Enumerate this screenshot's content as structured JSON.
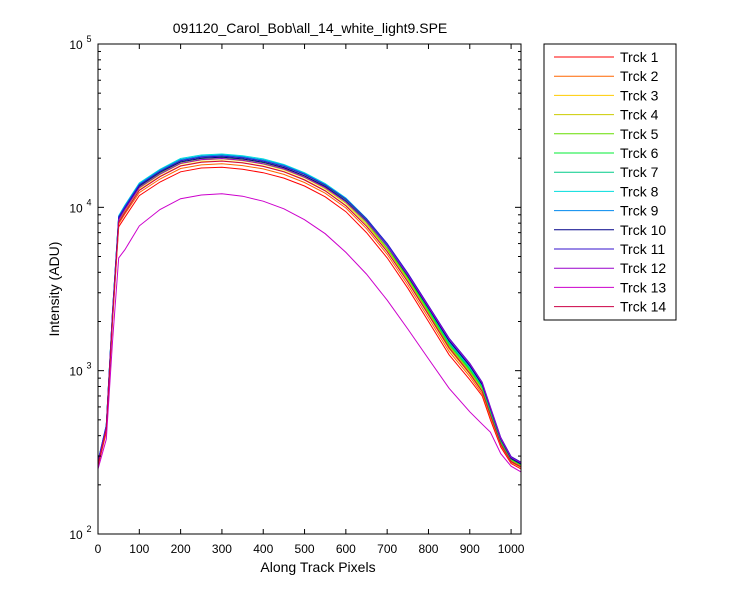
{
  "chart_data": {
    "type": "line",
    "title": "091120_Carol_Bob\\all_14_white_light9.SPE",
    "xlabel": "Along Track Pixels",
    "ylabel": "Intensity (ADU)",
    "xlim": [
      0,
      1024
    ],
    "ylim": [
      100,
      100000
    ],
    "yscale": "log",
    "grid": false,
    "legend_position": "outside-right",
    "x_ticks": [
      "0",
      "100",
      "200",
      "300",
      "400",
      "500",
      "600",
      "700",
      "800",
      "900",
      "1000"
    ],
    "y_ticks": [
      {
        "base": "10",
        "exp": "2"
      },
      {
        "base": "10",
        "exp": "3"
      },
      {
        "base": "10",
        "exp": "4"
      },
      {
        "base": "10",
        "exp": "5"
      }
    ],
    "x": [
      0,
      20,
      35,
      50,
      65,
      100,
      150,
      200,
      250,
      300,
      350,
      400,
      450,
      500,
      550,
      600,
      650,
      700,
      750,
      800,
      850,
      900,
      930,
      950,
      975,
      1000,
      1024
    ],
    "series": [
      {
        "name": "Trck 1",
        "color": "#ff0000",
        "values": [
          260,
          420,
          2000,
          7600,
          8700,
          11800,
          14300,
          16500,
          17400,
          17600,
          17100,
          16300,
          15100,
          13500,
          11600,
          9400,
          7000,
          4900,
          3200,
          2000,
          1250,
          880,
          700,
          500,
          340,
          270,
          250
        ]
      },
      {
        "name": "Trck 2",
        "color": "#ff6600",
        "values": [
          265,
          430,
          2050,
          7900,
          9100,
          12300,
          14900,
          17300,
          18200,
          18500,
          18000,
          17200,
          15900,
          14200,
          12200,
          9900,
          7400,
          5150,
          3350,
          2100,
          1310,
          920,
          720,
          520,
          350,
          275,
          255
        ]
      },
      {
        "name": "Trck 3",
        "color": "#ffcc00",
        "values": [
          270,
          440,
          2100,
          8100,
          9400,
          12800,
          15500,
          18000,
          19000,
          19300,
          18800,
          17900,
          16600,
          14800,
          12700,
          10300,
          7700,
          5350,
          3500,
          2190,
          1360,
          950,
          740,
          530,
          355,
          280,
          260
        ]
      },
      {
        "name": "Trck 4",
        "color": "#cccc00",
        "values": [
          270,
          445,
          2150,
          8300,
          9600,
          13100,
          15900,
          18500,
          19500,
          19800,
          19300,
          18400,
          17000,
          15200,
          13000,
          10600,
          7900,
          5500,
          3600,
          2250,
          1400,
          980,
          760,
          545,
          360,
          282,
          262
        ]
      },
      {
        "name": "Trck 5",
        "color": "#66dd00",
        "values": [
          275,
          450,
          2200,
          8500,
          9800,
          13400,
          16200,
          18900,
          19900,
          20200,
          19700,
          18800,
          17400,
          15500,
          13300,
          10800,
          8100,
          5600,
          3680,
          2300,
          1430,
          1000,
          780,
          555,
          365,
          285,
          264
        ]
      },
      {
        "name": "Trck 6",
        "color": "#00ee33",
        "values": [
          275,
          455,
          2250,
          8700,
          10000,
          13700,
          16600,
          19300,
          20300,
          20600,
          20100,
          19200,
          17800,
          15900,
          13600,
          11000,
          8300,
          5750,
          3750,
          2350,
          1460,
          1020,
          795,
          565,
          370,
          288,
          266
        ]
      },
      {
        "name": "Trck 7",
        "color": "#00cc88",
        "values": [
          278,
          460,
          2280,
          8800,
          10100,
          13900,
          16800,
          19600,
          20600,
          20900,
          20400,
          19500,
          18100,
          16100,
          13800,
          11200,
          8400,
          5850,
          3820,
          2390,
          1480,
          1040,
          805,
          575,
          375,
          290,
          268
        ]
      },
      {
        "name": "Trck 8",
        "color": "#00dddd",
        "values": [
          280,
          465,
          2300,
          8900,
          10300,
          14100,
          17100,
          19900,
          20900,
          21200,
          20700,
          19800,
          18300,
          16300,
          14000,
          11400,
          8550,
          5950,
          3880,
          2430,
          1510,
          1055,
          815,
          580,
          380,
          292,
          270
        ]
      },
      {
        "name": "Trck 9",
        "color": "#0088ee",
        "values": [
          280,
          462,
          2280,
          8800,
          10200,
          13900,
          16900,
          19600,
          20600,
          20900,
          20400,
          19500,
          18100,
          16100,
          13800,
          11300,
          8500,
          5950,
          3900,
          2460,
          1540,
          1080,
          830,
          590,
          385,
          295,
          272
        ]
      },
      {
        "name": "Trck 10",
        "color": "#000088",
        "values": [
          275,
          455,
          2220,
          8600,
          9900,
          13500,
          16400,
          19000,
          20000,
          20300,
          19800,
          18900,
          17500,
          15600,
          13400,
          10900,
          8250,
          5800,
          3800,
          2420,
          1520,
          1070,
          820,
          585,
          380,
          290,
          268
        ]
      },
      {
        "name": "Trck 11",
        "color": "#3311cc",
        "values": [
          278,
          460,
          2260,
          8700,
          10000,
          13700,
          16600,
          19300,
          20300,
          20600,
          20100,
          19200,
          17800,
          15900,
          13700,
          11200,
          8500,
          6000,
          3950,
          2500,
          1580,
          1110,
          850,
          600,
          390,
          298,
          275
        ]
      },
      {
        "name": "Trck 12",
        "color": "#9900cc",
        "values": [
          270,
          450,
          2180,
          8400,
          9700,
          13200,
          16000,
          18600,
          19600,
          19900,
          19400,
          18500,
          17200,
          15300,
          13200,
          10800,
          8200,
          5800,
          3850,
          2460,
          1560,
          1100,
          840,
          595,
          385,
          294,
          272
        ]
      },
      {
        "name": "Trck 13",
        "color": "#cc00cc",
        "values": [
          250,
          380,
          1500,
          4900,
          5500,
          7700,
          9700,
          11300,
          11900,
          12100,
          11700,
          10900,
          9800,
          8400,
          6900,
          5300,
          3900,
          2700,
          1800,
          1180,
          780,
          560,
          470,
          420,
          310,
          260,
          240
        ]
      },
      {
        "name": "Trck 14",
        "color": "#cc0044",
        "values": [
          265,
          440,
          2100,
          8100,
          9300,
          12700,
          15400,
          17900,
          18900,
          19200,
          18700,
          17800,
          16500,
          14700,
          12600,
          10200,
          7650,
          5350,
          3500,
          2200,
          1380,
          960,
          745,
          535,
          355,
          278,
          258
        ]
      }
    ]
  }
}
